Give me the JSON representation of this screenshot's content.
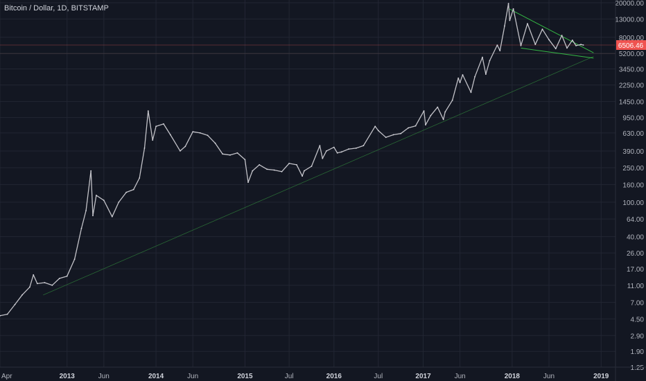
{
  "header": {
    "title": "Bitcoin / Dollar, 1D, BITSTAMP"
  },
  "colors": {
    "background": "#131722",
    "grid": "#222633",
    "candle": "#c2c2c8",
    "trend": "#2f7d3a",
    "wedge": "#38c948",
    "price_tag": "#ef5350"
  },
  "chart_data": {
    "type": "line",
    "title": "Bitcoin / Dollar, 1D, BITSTAMP",
    "y_scale": "log",
    "ylim": [
      1.25,
      20000
    ],
    "y_ticks": [
      "20000.00",
      "13000.00",
      "8000.00",
      "5200.00",
      "3450.00",
      "2250.00",
      "1450.00",
      "950.00",
      "630.00",
      "390.00",
      "250.00",
      "160.00",
      "100.00",
      "64.00",
      "40.00",
      "26.00",
      "17.00",
      "11.00",
      "7.00",
      "4.50",
      "2.90",
      "1.90",
      "1.25"
    ],
    "x_ticks": [
      {
        "label": "Apr",
        "date": "2012-04-01",
        "year": false
      },
      {
        "label": "2013",
        "date": "2013-01-01",
        "year": true
      },
      {
        "label": "Jun",
        "date": "2013-06-01",
        "year": false
      },
      {
        "label": "2014",
        "date": "2014-01-01",
        "year": true
      },
      {
        "label": "Jun",
        "date": "2014-06-01",
        "year": false
      },
      {
        "label": "2015",
        "date": "2015-01-01",
        "year": true
      },
      {
        "label": "Jul",
        "date": "2015-07-01",
        "year": false
      },
      {
        "label": "2016",
        "date": "2016-01-01",
        "year": true
      },
      {
        "label": "Jul",
        "date": "2016-07-01",
        "year": false
      },
      {
        "label": "2017",
        "date": "2017-01-01",
        "year": true
      },
      {
        "label": "Jun",
        "date": "2017-06-01",
        "year": false
      },
      {
        "label": "2018",
        "date": "2018-01-01",
        "year": true
      },
      {
        "label": "Jun",
        "date": "2018-06-01",
        "year": false
      },
      {
        "label": "2019",
        "date": "2019-01-01",
        "year": true
      }
    ],
    "xlim": [
      "2012-04-01",
      "2019-03-01"
    ],
    "current_price": "6506.46",
    "series": [
      {
        "values": [
          [
            "2012-04-01",
            4.9
          ],
          [
            "2012-05-01",
            5.1
          ],
          [
            "2012-06-01",
            6.6
          ],
          [
            "2012-07-01",
            8.5
          ],
          [
            "2012-08-01",
            10.5
          ],
          [
            "2012-08-16",
            14.5
          ],
          [
            "2012-09-01",
            11.5
          ],
          [
            "2012-10-01",
            11.8
          ],
          [
            "2012-11-01",
            11.0
          ],
          [
            "2012-12-01",
            13.2
          ],
          [
            "2013-01-01",
            14.0
          ],
          [
            "2013-02-01",
            22.0
          ],
          [
            "2013-03-01",
            50.0
          ],
          [
            "2013-03-20",
            80.0
          ],
          [
            "2013-04-09",
            230.0
          ],
          [
            "2013-04-17",
            70.0
          ],
          [
            "2013-05-01",
            120.0
          ],
          [
            "2013-06-01",
            105.0
          ],
          [
            "2013-07-05",
            68.0
          ],
          [
            "2013-08-01",
            100.0
          ],
          [
            "2013-09-01",
            130.0
          ],
          [
            "2013-10-01",
            140.0
          ],
          [
            "2013-10-25",
            190.0
          ],
          [
            "2013-11-15",
            420.0
          ],
          [
            "2013-11-30",
            1130.0
          ],
          [
            "2013-12-18",
            520.0
          ],
          [
            "2014-01-01",
            750.0
          ],
          [
            "2014-02-01",
            800.0
          ],
          [
            "2014-03-01",
            600.0
          ],
          [
            "2014-04-10",
            390.0
          ],
          [
            "2014-05-01",
            440.0
          ],
          [
            "2014-06-01",
            650.0
          ],
          [
            "2014-07-01",
            630.0
          ],
          [
            "2014-08-01",
            590.0
          ],
          [
            "2014-09-01",
            480.0
          ],
          [
            "2014-10-01",
            360.0
          ],
          [
            "2014-11-01",
            350.0
          ],
          [
            "2014-12-01",
            370.0
          ],
          [
            "2015-01-01",
            310.0
          ],
          [
            "2015-01-14",
            170.0
          ],
          [
            "2015-02-01",
            230.0
          ],
          [
            "2015-03-01",
            270.0
          ],
          [
            "2015-04-01",
            240.0
          ],
          [
            "2015-05-01",
            235.0
          ],
          [
            "2015-06-01",
            225.0
          ],
          [
            "2015-07-01",
            280.0
          ],
          [
            "2015-08-01",
            270.0
          ],
          [
            "2015-08-24",
            200.0
          ],
          [
            "2015-09-01",
            230.0
          ],
          [
            "2015-10-01",
            260.0
          ],
          [
            "2015-11-04",
            450.0
          ],
          [
            "2015-11-15",
            320.0
          ],
          [
            "2015-12-01",
            390.0
          ],
          [
            "2016-01-01",
            430.0
          ],
          [
            "2016-01-15",
            370.0
          ],
          [
            "2016-02-01",
            380.0
          ],
          [
            "2016-03-01",
            410.0
          ],
          [
            "2016-04-01",
            420.0
          ],
          [
            "2016-05-01",
            450.0
          ],
          [
            "2016-06-18",
            750.0
          ],
          [
            "2016-07-01",
            670.0
          ],
          [
            "2016-08-01",
            560.0
          ],
          [
            "2016-09-01",
            600.0
          ],
          [
            "2016-10-01",
            620.0
          ],
          [
            "2016-11-01",
            720.0
          ],
          [
            "2016-12-01",
            760.0
          ],
          [
            "2017-01-04",
            1130.0
          ],
          [
            "2017-01-11",
            780.0
          ],
          [
            "2017-02-01",
            1000.0
          ],
          [
            "2017-03-01",
            1250.0
          ],
          [
            "2017-03-25",
            900.0
          ],
          [
            "2017-04-01",
            1100.0
          ],
          [
            "2017-05-01",
            1500.0
          ],
          [
            "2017-05-25",
            2700.0
          ],
          [
            "2017-06-01",
            2400.0
          ],
          [
            "2017-06-12",
            2950.0
          ],
          [
            "2017-07-16",
            1850.0
          ],
          [
            "2017-08-01",
            2800.0
          ],
          [
            "2017-09-01",
            4700.0
          ],
          [
            "2017-09-15",
            3000.0
          ],
          [
            "2017-10-01",
            4300.0
          ],
          [
            "2017-11-01",
            6500.0
          ],
          [
            "2017-11-12",
            5600.0
          ],
          [
            "2017-12-01",
            10800.0
          ],
          [
            "2017-12-17",
            19600.0
          ],
          [
            "2017-12-22",
            12500.0
          ],
          [
            "2018-01-06",
            17000.0
          ],
          [
            "2018-02-06",
            6400.0
          ],
          [
            "2018-03-05",
            11500.0
          ],
          [
            "2018-04-06",
            6600.0
          ],
          [
            "2018-05-05",
            9900.0
          ],
          [
            "2018-06-01",
            7500.0
          ],
          [
            "2018-06-29",
            5900.0
          ],
          [
            "2018-07-24",
            8400.0
          ],
          [
            "2018-08-14",
            6000.0
          ],
          [
            "2018-09-05",
            7400.0
          ],
          [
            "2018-09-20",
            6400.0
          ],
          [
            "2018-10-10",
            6600.0
          ],
          [
            "2018-10-20",
            6506.46
          ]
        ]
      }
    ],
    "trendlines": [
      {
        "role": "support",
        "points": [
          [
            "2012-09-25",
            8.5
          ],
          [
            "2018-12-01",
            4800.0
          ]
        ]
      },
      {
        "role": "wedge-top",
        "points": [
          [
            "2017-12-20",
            17000.0
          ],
          [
            "2018-12-01",
            5300.0
          ]
        ]
      },
      {
        "role": "wedge-bottom",
        "points": [
          [
            "2018-02-06",
            6000.0
          ],
          [
            "2018-12-01",
            4600.0
          ]
        ]
      }
    ],
    "horizontal_lines": [
      6506.46,
      5200.0
    ]
  }
}
